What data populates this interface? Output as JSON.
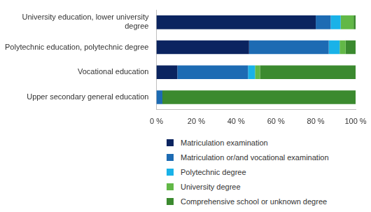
{
  "chart_data": {
    "type": "bar",
    "orientation": "horizontal",
    "stacked": true,
    "grid": false,
    "legend": "bottom",
    "categories": [
      "University education, lower university degree",
      "Polytechnic education, polytechnic degree",
      "Vocational education",
      "Upper secondary general education"
    ],
    "series": [
      {
        "name": "Matriculation examination",
        "color": "#0b2460",
        "values": [
          80,
          46.5,
          10.5,
          0
        ]
      },
      {
        "name": "Matriculation or/and vocational examination",
        "color": "#1d6bb3",
        "values": [
          7.5,
          40,
          35.5,
          3
        ]
      },
      {
        "name": "Polytechnic degree",
        "color": "#19b2e8",
        "values": [
          5,
          5.5,
          3.5,
          0
        ]
      },
      {
        "name": "University degree",
        "color": "#62b847",
        "values": [
          6.5,
          3,
          2.5,
          0
        ]
      },
      {
        "name": "Comprehensive school or unknown degree",
        "color": "#3b8a2f",
        "values": [
          1,
          5,
          48,
          97
        ]
      }
    ],
    "xlim": [
      0,
      100
    ],
    "xticks": [
      {
        "value": 0,
        "label": "0 %"
      },
      {
        "value": 20,
        "label": "20 %"
      },
      {
        "value": 40,
        "label": "40 %"
      },
      {
        "value": 60,
        "label": "60 %"
      },
      {
        "value": 80,
        "label": "80 %"
      },
      {
        "value": 100,
        "label": "100 %"
      }
    ]
  }
}
